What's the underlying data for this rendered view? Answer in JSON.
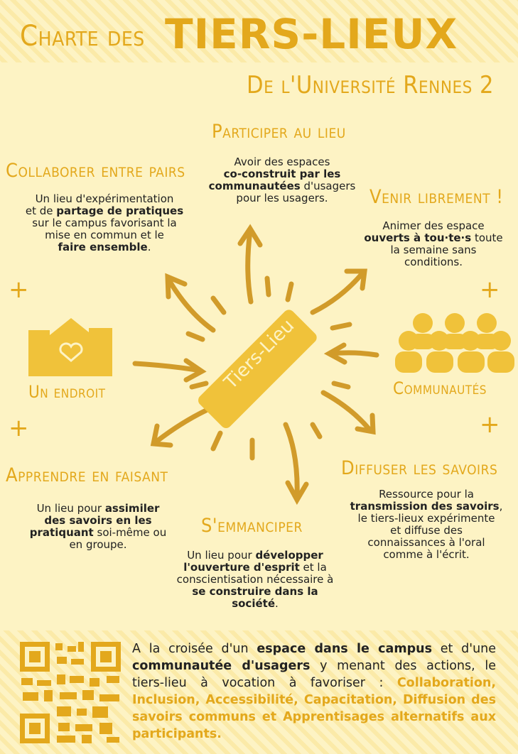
{
  "header": {
    "title_prefix": "Charte des",
    "title_main": "TIERS-LIEUX",
    "subtitle": "De l'Université Rennes 2"
  },
  "center": {
    "label": "Tiers-Lieu"
  },
  "sections": {
    "participer": {
      "heading": "Participer au lieu"
    },
    "collaborer": {
      "heading": "Collaborer entre pairs"
    },
    "venir": {
      "heading": "Venir librement !"
    },
    "apprendre": {
      "heading": "Apprendre en faisant"
    },
    "emanciper": {
      "heading": "S'emmanciper"
    },
    "diffuser": {
      "heading": "Diffuser les savoirs"
    }
  },
  "participer_text": [
    "Avoir des espaces",
    "co-construit par les",
    "communautées",
    " d'usagers",
    "pour les usagers."
  ],
  "collaborer_text": [
    "Un lieu d'expérimentation",
    "et de ",
    "partage de pratiques",
    "sur le campus favorisant la",
    "mise en commun et le",
    "faire ensemble",
    "."
  ],
  "venir_text": [
    "Animer des espace",
    "ouverts à tou·te·s",
    " toute",
    "la semaine sans",
    "conditions."
  ],
  "apprendre_text": [
    "Un lieu pour ",
    "assimiler",
    "des savoirs en les",
    "pratiquant",
    " soi-même ou",
    "en groupe."
  ],
  "emanciper_text": [
    "Un lieu pour ",
    "développer",
    "l'ouverture d'esprit",
    " et la",
    "conscientisation nécessaire à",
    "se construire dans la",
    "société",
    "."
  ],
  "diffuser_text": [
    "Ressource pour la",
    "transmission des savoirs",
    ",",
    "le tiers-lieux expérimente",
    "et diffuse des",
    "connaissances à l'oral",
    "comme à l'écrit."
  ],
  "icons": {
    "endroit_label": "Un endroit",
    "communautes_label": "Communautés"
  },
  "footer": {
    "t1": "A la croisée d'un ",
    "t2": "espace dans le campus",
    "t3": " et d'une ",
    "t4": "communautée d'usagers",
    "t5": " y menant des actions, le tiers-lieu à vocation à favoriser :",
    "values": "Collaboration, Inclusion, Accessibilité, Capacitation, Diffusion des savoirs communs et Apprentisages alternatifs aux participants."
  },
  "colors": {
    "accent": "#e3a81c",
    "background": "#fdf3c4"
  }
}
